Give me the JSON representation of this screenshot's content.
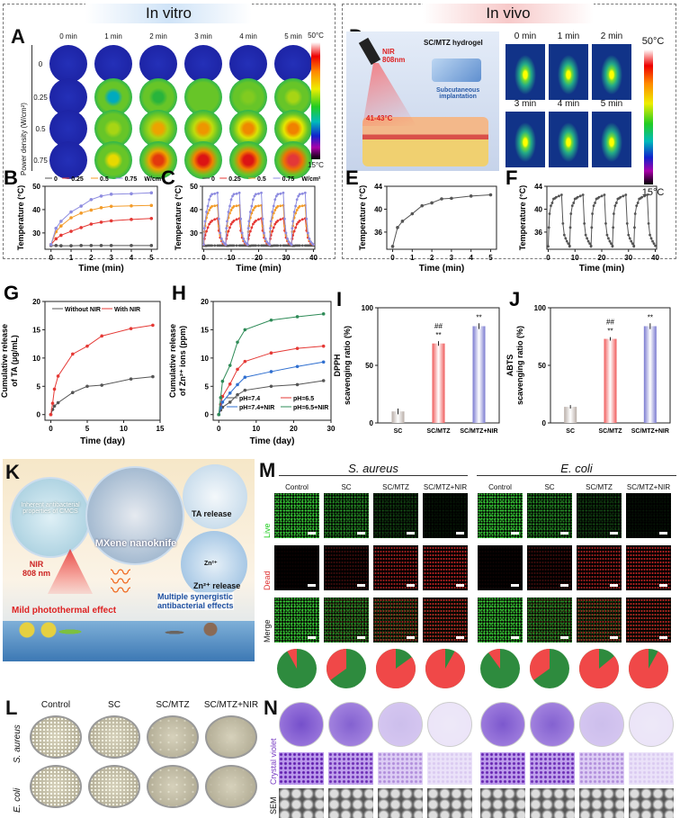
{
  "invitro": {
    "title": "In vitro",
    "color": "#cfe3f7"
  },
  "invivo": {
    "title": "In vivo",
    "color": "#f7c9c9"
  },
  "panelA": {
    "letter": "A",
    "times": [
      "0 min",
      "1 min",
      "2 min",
      "3 min",
      "4 min",
      "5 min"
    ],
    "powers": [
      "0",
      "0.25",
      "0.5",
      "0.75"
    ],
    "ylabel": "Power density (W/cm²)",
    "cbar_max": "50°C",
    "cbar_min": "15°C",
    "heat_level": [
      [
        0,
        0,
        0,
        0,
        0,
        0
      ],
      [
        0,
        0.3,
        0.45,
        0.5,
        0.52,
        0.55
      ],
      [
        0,
        0.55,
        0.7,
        0.72,
        0.74,
        0.75
      ],
      [
        0,
        0.62,
        0.85,
        0.9,
        0.9,
        0.92
      ]
    ]
  },
  "panelD": {
    "letter": "D",
    "nir": "NIR\n808nm",
    "hydrogel": "SC/MTZ hydrogel",
    "implant": "Subcutaneous\nimplantation",
    "temp": "41-43°C",
    "times": [
      "0 min",
      "1 min",
      "2 min",
      "3 min",
      "4 min",
      "5 min"
    ],
    "cbar_max": "50°C",
    "cbar_min": "15°C"
  },
  "panelK": {
    "letter": "K",
    "cmcs": "Inherent antibacterial properties of CMCS",
    "mxene": "MXene nanoknife",
    "ta": "TA release",
    "zn": "Zn²⁺ release",
    "zn_ion": "Zn²⁺",
    "nir": "NIR\n808 nm",
    "photo": "Mild photothermal effect",
    "multi": "Multiple synergistic\nantibacterial effects"
  },
  "panelM": {
    "letter": "M",
    "groups": [
      "S. aureus",
      "E. coli"
    ],
    "columns": [
      "Control",
      "SC",
      "SC/MTZ",
      "SC/MTZ+NIR",
      "Control",
      "SC",
      "SC/MTZ",
      "SC/MTZ+NIR"
    ],
    "rows": [
      "Live",
      "Dead",
      "Merge"
    ],
    "live_density": [
      0.95,
      0.6,
      0.25,
      0.08,
      0.95,
      0.6,
      0.25,
      0.06
    ],
    "dead_fraction": [
      0.08,
      0.35,
      0.85,
      0.92,
      0.1,
      0.35,
      0.86,
      0.92
    ],
    "live_color": "#2e8b3e",
    "dead_color": "#f04848"
  },
  "panelL": {
    "letter": "L",
    "columns": [
      "Control",
      "SC",
      "SC/MTZ",
      "SC/MTZ+NIR"
    ],
    "rows": [
      "S. aureus",
      "E. coli"
    ],
    "colony_density": [
      [
        1,
        0.8,
        0.35,
        0.05
      ],
      [
        1,
        0.85,
        0.4,
        0.1
      ]
    ]
  },
  "panelN": {
    "letter": "N",
    "rows": [
      "Crystal violet",
      "SEM"
    ],
    "stain_intensity": [
      0.95,
      0.85,
      0.35,
      0.12,
      0.9,
      0.85,
      0.35,
      0.12
    ]
  },
  "chart_data": [
    {
      "id": "B",
      "letter": "B",
      "type": "line",
      "xlabel": "Time (min)",
      "ylabel": "Temperature (°C)",
      "xlim": [
        -0.3,
        5.3
      ],
      "ylim": [
        23,
        50
      ],
      "xticks": [
        0,
        1,
        2,
        3,
        4,
        5
      ],
      "yticks": [
        30,
        40,
        50
      ],
      "legend_unit": "W/cm²",
      "x": [
        0,
        0.25,
        0.5,
        1,
        1.5,
        2,
        2.5,
        3,
        4,
        5
      ],
      "series": [
        {
          "name": "0",
          "color": "#555555",
          "values": [
            24.6,
            24.6,
            24.5,
            24.5,
            24.6,
            24.6,
            24.6,
            24.6,
            24.6,
            24.6
          ]
        },
        {
          "name": "0.25",
          "color": "#e53935",
          "values": [
            25,
            27.5,
            29,
            30.7,
            32.3,
            33.8,
            34.6,
            35.2,
            35.8,
            36.2
          ]
        },
        {
          "name": "0.5",
          "color": "#f39c2a",
          "values": [
            25,
            30.5,
            33,
            36.5,
            38.5,
            39.8,
            40.8,
            41.4,
            41.6,
            41.8
          ]
        },
        {
          "name": "0.75",
          "color": "#8e8ce0",
          "values": [
            25,
            32,
            35,
            39,
            41.5,
            44.3,
            45.8,
            46.6,
            46.8,
            47.2
          ]
        }
      ]
    },
    {
      "id": "C",
      "letter": "C",
      "type": "line",
      "xlabel": "Time (min)",
      "ylabel": "Temperature (°C)",
      "xlim": [
        -0.5,
        40.5
      ],
      "ylim": [
        23,
        50
      ],
      "xticks": [
        0,
        10,
        20,
        30,
        40
      ],
      "yticks": [
        30,
        40,
        50
      ],
      "legend_unit": "W/cm²",
      "cycles": 5,
      "cycle_x": [
        0,
        0.25,
        0.5,
        1,
        1.5,
        2,
        2.5,
        3,
        4,
        5,
        5.5,
        6,
        6.5,
        7,
        7.5,
        8
      ],
      "series": [
        {
          "name": "0",
          "color": "#555555",
          "values": [
            24.6,
            24.6,
            24.5,
            24.5,
            24.6,
            24.6,
            24.6,
            24.6,
            24.6,
            24.6,
            24.6,
            24.6,
            24.6,
            24.6,
            24.6,
            24.6
          ]
        },
        {
          "name": "0.25",
          "color": "#e53935",
          "values": [
            25,
            27.5,
            29,
            30.7,
            32.3,
            33.8,
            34.6,
            35.2,
            35.8,
            36.2,
            31,
            28,
            26.5,
            25.6,
            25.2,
            25
          ]
        },
        {
          "name": "0.5",
          "color": "#f39c2a",
          "values": [
            25,
            30.5,
            33,
            36.5,
            38.5,
            39.8,
            40.8,
            41.4,
            41.6,
            41.8,
            33,
            29,
            27,
            26,
            25.4,
            25
          ]
        },
        {
          "name": "0.75",
          "color": "#8e8ce0",
          "values": [
            25,
            32,
            35,
            39,
            41.5,
            44.3,
            45.8,
            46.6,
            46.8,
            47.2,
            36,
            30,
            27.5,
            26.2,
            25.5,
            25
          ]
        }
      ]
    },
    {
      "id": "E",
      "letter": "E",
      "type": "line",
      "xlabel": "Time (min)",
      "ylabel": "Temperature (°C)",
      "xlim": [
        -0.3,
        5.3
      ],
      "ylim": [
        33,
        44
      ],
      "xticks": [
        0,
        1,
        2,
        3,
        4,
        5
      ],
      "yticks": [
        36,
        40,
        44
      ],
      "x": [
        0,
        0.25,
        0.5,
        1,
        1.5,
        2,
        2.5,
        3,
        4,
        5
      ],
      "series": [
        {
          "color": "#555555",
          "values": [
            33.5,
            36.8,
            37.9,
            39.2,
            40.6,
            41.1,
            41.8,
            41.9,
            42.3,
            42.5
          ]
        }
      ]
    },
    {
      "id": "F",
      "letter": "F",
      "type": "line",
      "xlabel": "Time (min)",
      "ylabel": "Temperature (°C)",
      "xlim": [
        -0.5,
        40.5
      ],
      "ylim": [
        33,
        44
      ],
      "xticks": [
        0,
        10,
        20,
        30,
        40
      ],
      "yticks": [
        36,
        40,
        44
      ],
      "cycles": 5,
      "cycle_x": [
        0,
        0.25,
        0.5,
        1,
        1.5,
        2,
        2.5,
        3,
        4,
        5,
        5.5,
        6,
        6.5,
        7,
        7.5,
        8
      ],
      "series": [
        {
          "color": "#555555",
          "values": [
            33.5,
            36.8,
            39.2,
            40.6,
            41.1,
            41.8,
            41.9,
            42.1,
            42.3,
            42.5,
            37.5,
            35.5,
            34.9,
            34.4,
            34,
            33.6
          ]
        }
      ]
    },
    {
      "id": "G",
      "letter": "G",
      "type": "line",
      "xlabel": "Time (day)",
      "ylabel": "Cumulative release\nof TA (μg/mL)",
      "xlim": [
        -0.8,
        15
      ],
      "ylim": [
        -1,
        20
      ],
      "xticks": [
        0,
        5,
        10,
        15
      ],
      "yticks": [
        0,
        5,
        10,
        15,
        20
      ],
      "x": [
        0,
        0.25,
        0.5,
        1,
        3,
        5,
        7,
        11,
        14
      ],
      "series": [
        {
          "name": "Without NIR",
          "color": "#555555",
          "values": [
            0,
            0.9,
            1.5,
            2.1,
            3.9,
            5.0,
            5.2,
            6.3,
            6.7
          ]
        },
        {
          "name": "With NIR",
          "color": "#e53935",
          "values": [
            0,
            2,
            4.5,
            6.8,
            10.7,
            12.1,
            13.9,
            15.2,
            15.8
          ]
        }
      ]
    },
    {
      "id": "H",
      "letter": "H",
      "type": "line",
      "xlabel": "Time (day)",
      "ylabel": "Cumulative release\nof Zn²⁺ ions (ppm)",
      "xlim": [
        -1.5,
        30
      ],
      "ylim": [
        -1,
        20
      ],
      "xticks": [
        0,
        10,
        20,
        30
      ],
      "yticks": [
        0,
        5,
        10,
        15,
        20
      ],
      "x": [
        0,
        0.5,
        1,
        3,
        5,
        7,
        14,
        21,
        28
      ],
      "series": [
        {
          "name": "pH=7.4",
          "color": "#555555",
          "values": [
            0,
            0.8,
            1.3,
            2.2,
            3.5,
            4.3,
            5.0,
            5.3,
            6.0
          ]
        },
        {
          "name": "pH=6.5",
          "color": "#e53935",
          "values": [
            0,
            1.8,
            3.2,
            5.4,
            8.0,
            9.4,
            10.9,
            11.7,
            12.1
          ]
        },
        {
          "name": "pH=7.4+NIR",
          "color": "#2f6fd0",
          "values": [
            0,
            1.2,
            2.2,
            3.8,
            5.3,
            6.6,
            7.6,
            8.5,
            9.3
          ]
        },
        {
          "name": "pH=6.5+NIR",
          "color": "#2e8b57",
          "values": [
            0,
            3.0,
            5.9,
            8.7,
            12.8,
            15.0,
            16.7,
            17.3,
            17.8
          ]
        }
      ]
    },
    {
      "id": "I",
      "letter": "I",
      "type": "bar",
      "ylabel": "DPPH\nscavenging ratio (%)",
      "ylim": [
        0,
        100
      ],
      "yticks": [
        0,
        50,
        100
      ],
      "categories": [
        "SC",
        "SC/MTZ",
        "SC/MTZ+NIR"
      ],
      "values": [
        10,
        69,
        84
      ],
      "errors": [
        2.5,
        2,
        2.5
      ],
      "colors": [
        "#b9aea8",
        "#f05a5a",
        "#7a7ad0"
      ],
      "annotations": [
        "",
        "##\n**",
        "**"
      ]
    },
    {
      "id": "J",
      "letter": "J",
      "type": "bar",
      "ylabel": "ABTS\nscavenging ratio (%)",
      "ylim": [
        0,
        100
      ],
      "yticks": [
        0,
        50,
        100
      ],
      "categories": [
        "SC",
        "SC/MTZ",
        "SC/MTZ+NIR"
      ],
      "values": [
        14,
        73,
        84
      ],
      "errors": [
        1.5,
        1.5,
        2.5
      ],
      "colors": [
        "#b9aea8",
        "#f05a5a",
        "#7a7ad0"
      ],
      "annotations": [
        "",
        "##\n**",
        "**"
      ]
    }
  ]
}
